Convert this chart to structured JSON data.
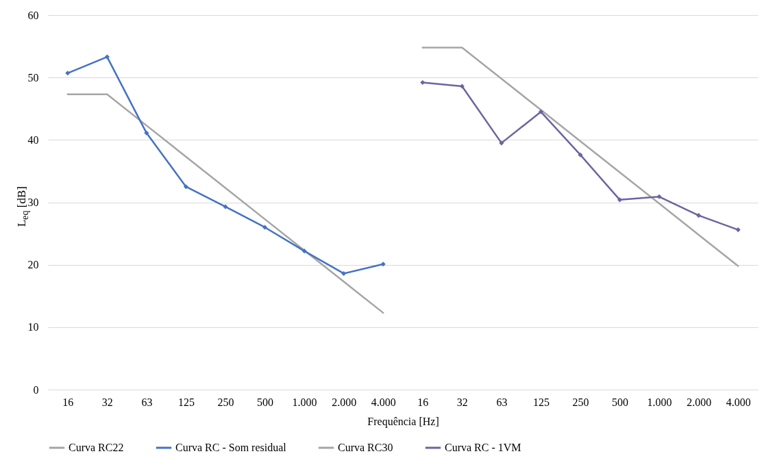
{
  "chart_data": {
    "type": "line",
    "xlabel": "Frequência [Hz]",
    "ylabel": "L$_{eq}$ [dB]",
    "categories": [
      "16",
      "32",
      "63",
      "125",
      "250",
      "500",
      "1.000",
      "2.000",
      "4.000",
      "16",
      "32",
      "63",
      "125",
      "250",
      "500",
      "1.000",
      "2.000",
      "4.000"
    ],
    "series": [
      {
        "name": "Curva RC22",
        "color": "#a5a5a5",
        "marker": "none",
        "values": [
          47.3,
          47.3,
          42.3,
          37.3,
          32.3,
          27.3,
          22.3,
          17.3,
          12.3,
          null,
          null,
          null,
          null,
          null,
          null,
          null,
          null,
          null
        ]
      },
      {
        "name": "Curva RC - Som residual",
        "color": "#4472c4",
        "marker": "diamond",
        "values": [
          50.7,
          53.3,
          41.1,
          32.5,
          29.3,
          26.0,
          22.2,
          18.6,
          20.1,
          null,
          null,
          null,
          null,
          null,
          null,
          null,
          null,
          null
        ]
      },
      {
        "name": "Curva RC30",
        "color": "#a5a5a5",
        "marker": "none",
        "values": [
          null,
          null,
          null,
          null,
          null,
          null,
          null,
          null,
          null,
          54.8,
          54.8,
          49.8,
          44.8,
          39.8,
          34.8,
          29.8,
          24.8,
          19.8
        ]
      },
      {
        "name": "Curva RC - 1VM",
        "color": "#6a65a0",
        "marker": "diamond",
        "values": [
          null,
          null,
          null,
          null,
          null,
          null,
          null,
          null,
          null,
          49.2,
          48.6,
          39.5,
          44.5,
          37.6,
          30.4,
          30.9,
          27.9,
          25.6
        ]
      }
    ],
    "ylim": [
      0,
      60
    ],
    "yticks": [
      0,
      10,
      20,
      30,
      40,
      50,
      60
    ],
    "grid": "y",
    "legend": "bottom",
    "line_style": "solid"
  }
}
